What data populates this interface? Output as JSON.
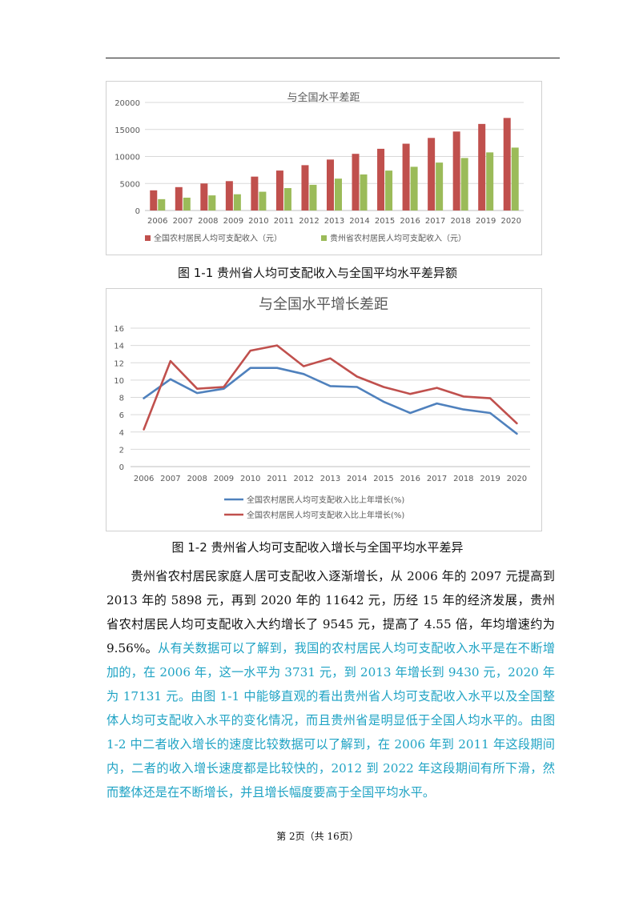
{
  "chart_data": [
    {
      "type": "bar",
      "title": "与全国水平差距",
      "categories": [
        "2006",
        "2007",
        "2008",
        "2009",
        "2010",
        "2011",
        "2012",
        "2013",
        "2014",
        "2015",
        "2016",
        "2017",
        "2018",
        "2019",
        "2020"
      ],
      "series": [
        {
          "name": "全国农村居民人均可支配收入（元）",
          "color": "#c0504d",
          "values": [
            3731,
            4327,
            4999,
            5435,
            6272,
            7394,
            8389,
            9430,
            10489,
            11422,
            12363,
            13432,
            14617,
            16021,
            17131
          ]
        },
        {
          "name": "贵州省农村居民人均可支配收入（元）",
          "color": "#9bbb59",
          "values": [
            2097,
            2374,
            2797,
            3005,
            3472,
            4145,
            4753,
            5898,
            6671,
            7387,
            8090,
            8869,
            9716,
            10756,
            11642
          ]
        }
      ],
      "ylim": [
        0,
        20000
      ],
      "yticks": [
        "0",
        "5000",
        "10000",
        "15000",
        "20000"
      ],
      "legend": "bottom"
    },
    {
      "type": "line",
      "title": "与全国水平增长差距",
      "categories": [
        "2006",
        "2007",
        "2008",
        "2009",
        "2010",
        "2011",
        "2012",
        "2013",
        "2014",
        "2015",
        "2016",
        "2017",
        "2018",
        "2019",
        "2020"
      ],
      "series": [
        {
          "name": "全国农村居民人均可支配收入比上年增长(%)",
          "color": "#4f81bd",
          "values": [
            7.9,
            10.1,
            8.5,
            9.0,
            11.4,
            11.4,
            10.7,
            9.3,
            9.2,
            7.5,
            6.2,
            7.3,
            6.6,
            6.2,
            3.8
          ]
        },
        {
          "name": "全国农村居民人均可支配收入比上年增长(%)",
          "color": "#c0504d",
          "values": [
            4.3,
            12.2,
            9.0,
            9.2,
            13.4,
            14.0,
            11.6,
            12.5,
            10.4,
            9.2,
            8.4,
            9.1,
            8.1,
            7.9,
            5.0
          ]
        }
      ],
      "ylim": [
        0,
        16
      ],
      "yticks": [
        "0",
        "2",
        "4",
        "6",
        "8",
        "10",
        "12",
        "14",
        "16"
      ],
      "legend": "bottom"
    }
  ],
  "captions": {
    "fig1": "图 1-1  贵州省人均可支配收入与全国平均水平差异额",
    "fig2": "图 1-2  贵州省人均可支配收入增长与全国平均水平差异"
  },
  "body": {
    "p1_black": "贵州省农村居民家庭人居可支配收入逐渐增长，从 2006 年的 2097 元提高到 2013 年的 5898 元，再到 2020 年的 11642 元，历经 15 年的经济发展，贵州省农村居民人均可支配收入大约增长了 9545 元，提高了 4.55 倍，年均增速约为 9.56%。",
    "p1_blue": "从有关数据可以了解到，我国的农村居民人均可支配收入水平是在不断增加的，在 2006 年，这一水平为 3731 元，到 2013 年增长到 9430 元，2020 年为 17131 元。由图 1-1 中能够直观的看出贵州省人均可支配收入水平以及全国整体人均可支配收入水平的变化情况，而且贵州省是明显低于全国人均水平的。由图 1-2 中二者收入增长的速度比较数据可以了解到，在 2006 年到 2011 年这段期间内，二者的收入增长速度都是比较快的，2012 到 2022 年这段期间有所下滑，然而整体还是在不断增长，并且增长幅度要高于全国平均水平。"
  },
  "footer": "第 2页（共 16页）"
}
